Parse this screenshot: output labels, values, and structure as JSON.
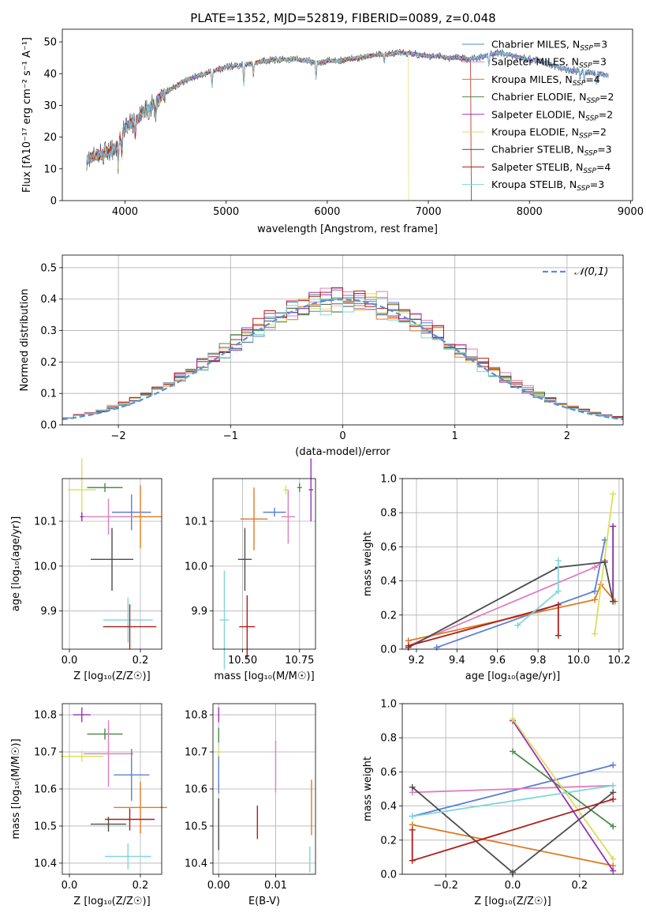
{
  "figure": {
    "title": "PLATE=1352, MJD=52819, FIBERID=0089, z=0.048"
  },
  "colors": {
    "Chabrier MILES": "#5b7fd6",
    "Salpeter MILES": "#e07dbf",
    "Kroupa MILES": "#e07a1f",
    "Chabrier ELODIE": "#4c8c4c",
    "Salpeter ELODIE": "#9b30b5",
    "Kroupa ELODIE": "#d8e05a",
    "Chabrier STELIB": "#4d4d4d",
    "Salpeter STELIB": "#b01c1c",
    "Kroupa STELIB": "#7fd6dc"
  },
  "chart_data": [
    {
      "type": "line",
      "title": "PLATE=1352, MJD=52819, FIBERID=0089, z=0.048",
      "xlabel": "wavelength [Angstrom, rest frame]",
      "ylabel": "Flux [fλ10⁻¹⁷ erg cm⁻² s⁻¹ A⁻¹]",
      "xlim": [
        3380,
        9020
      ],
      "ylim": [
        0,
        54
      ],
      "xticks": [
        "4000",
        "5000",
        "6000",
        "7000",
        "8000",
        "9000"
      ],
      "yticks": [
        "0",
        "10",
        "20",
        "30",
        "40",
        "50"
      ],
      "grid": false,
      "legend_placement": "top-right",
      "legend": [
        {
          "key": "Chabrier MILES",
          "label": "Chabrier MILES, N",
          "sub": "SSP",
          "suffix": "=3"
        },
        {
          "key": "Salpeter MILES",
          "label": "Salpeter MILES, N",
          "sub": "SSP",
          "suffix": "=3"
        },
        {
          "key": "Kroupa MILES",
          "label": "Kroupa MILES, N",
          "sub": "SSP",
          "suffix": "=4"
        },
        {
          "key": "Chabrier ELODIE",
          "label": "Chabrier ELODIE, N",
          "sub": "SSP",
          "suffix": "=2"
        },
        {
          "key": "Salpeter ELODIE",
          "label": "Salpeter ELODIE, N",
          "sub": "SSP",
          "suffix": "=2"
        },
        {
          "key": "Kroupa ELODIE",
          "label": "Kroupa ELODIE, N",
          "sub": "SSP",
          "suffix": "=2"
        },
        {
          "key": "Chabrier STELIB",
          "label": "Chabrier STELIB, N",
          "sub": "SSP",
          "suffix": "=3"
        },
        {
          "key": "Salpeter STELIB",
          "label": "Salpeter STELIB, N",
          "sub": "SSP",
          "suffix": "=4"
        },
        {
          "key": "Kroupa STELIB",
          "label": "Kroupa STELIB, N",
          "sub": "SSP",
          "suffix": "=3"
        }
      ],
      "continuum": {
        "x": [
          3620,
          3700,
          3800,
          3900,
          4000,
          4100,
          4200,
          4300,
          4400,
          4500,
          4600,
          4700,
          4800,
          4900,
          5000,
          5100,
          5200,
          5300,
          5400,
          5500,
          5600,
          5700,
          5800,
          5900,
          6000,
          6100,
          6200,
          6300,
          6400,
          6500,
          6600,
          6700,
          6800,
          6900,
          7000,
          7100,
          7200,
          7300,
          7400,
          7500,
          7600,
          7700,
          7800,
          7900,
          8000,
          8100,
          8200,
          8300,
          8400,
          8500,
          8600,
          8700,
          8800
        ],
        "y": [
          13,
          14,
          15,
          16,
          23,
          25,
          28,
          31,
          34,
          36,
          38,
          39,
          40,
          41,
          42,
          42.5,
          43,
          43.5,
          44,
          44.5,
          44.5,
          44.5,
          44,
          43.5,
          44,
          44,
          44.5,
          45,
          45.5,
          46,
          46,
          46.5,
          46.5,
          46,
          45.5,
          45.5,
          45,
          45,
          44.5,
          45,
          46,
          46.5,
          46,
          45,
          44.5,
          44,
          43,
          42,
          41,
          41,
          40.5,
          40,
          39
        ]
      },
      "dropouts": [
        {
          "series": "Kroupa ELODIE",
          "x_start": 6800
        },
        {
          "series": "Salpeter STELIB",
          "x_start": 7420
        },
        {
          "series": "Kroupa MILES",
          "x_start": 7420
        }
      ]
    },
    {
      "type": "histogram",
      "xlabel": "(data-model)/error",
      "ylabel": "Normed distribution",
      "xlim": [
        -2.5,
        2.5
      ],
      "ylim": [
        0,
        0.54
      ],
      "xticks": [
        "−2",
        "−1",
        "0",
        "1",
        "2"
      ],
      "yticks": [
        "0.0",
        "0.1",
        "0.2",
        "0.3",
        "0.4",
        "0.5"
      ],
      "grid": true,
      "bin_width": 0.1,
      "reference_curve": {
        "label": "𝒩(0,1)",
        "style": "dashed",
        "color": "#5b8fd6"
      },
      "legend_placement": "top-right",
      "series": [
        {
          "name": "Chabrier MILES",
          "amplitude": 1.0
        },
        {
          "name": "Salpeter MILES",
          "amplitude": 1.04
        },
        {
          "name": "Kroupa MILES",
          "amplitude": 0.98
        },
        {
          "name": "Chabrier ELODIE",
          "amplitude": 1.02
        },
        {
          "name": "Salpeter ELODIE",
          "amplitude": 1.0
        },
        {
          "name": "Kroupa ELODIE",
          "amplitude": 1.01
        },
        {
          "name": "Chabrier STELIB",
          "amplitude": 0.99
        },
        {
          "name": "Salpeter STELIB",
          "amplitude": 1.03
        },
        {
          "name": "Kroupa STELIB",
          "amplitude": 0.97
        }
      ]
    },
    {
      "type": "scatter",
      "xlabel": "Z [log₁₀(Z/Z☉)]",
      "ylabel": "age  [log₁₀(age/yr)]",
      "xlim": [
        -0.02,
        0.26
      ],
      "ylim": [
        9.815,
        10.195
      ],
      "xticks": [
        {
          "v": 0.0,
          "t": "0.0"
        },
        {
          "v": 0.2,
          "t": "0.2"
        }
      ],
      "yticks": [
        {
          "v": 9.9,
          "t": "9.9"
        },
        {
          "v": 10.0,
          "t": "10.0"
        },
        {
          "v": 10.1,
          "t": "10.1"
        }
      ],
      "grid": true,
      "points": [
        {
          "series": "Kroupa ELODIE",
          "x": 0.035,
          "y": 10.17,
          "xerr": 0.04,
          "yerr": 0.07
        },
        {
          "series": "Chabrier ELODIE",
          "x": 0.1,
          "y": 10.175,
          "xerr": 0.05,
          "yerr": 0.01
        },
        {
          "series": "Chabrier MILES",
          "x": 0.175,
          "y": 10.12,
          "xerr": 0.055,
          "yerr": 0.04
        },
        {
          "series": "Kroupa MILES",
          "x": 0.2,
          "y": 10.11,
          "xerr": 0.06,
          "yerr": 0.07
        },
        {
          "series": "Salpeter MILES",
          "x": 0.11,
          "y": 10.11,
          "xerr": 0.07,
          "yerr": 0.04
        },
        {
          "series": "Salpeter ELODIE",
          "x": 0.035,
          "y": 10.11,
          "xerr": 0.005,
          "yerr": 0.01
        },
        {
          "series": "Chabrier STELIB",
          "x": 0.12,
          "y": 10.015,
          "xerr": 0.06,
          "yerr": 0.07
        },
        {
          "series": "Kroupa STELIB",
          "x": 0.165,
          "y": 9.88,
          "xerr": 0.07,
          "yerr": 0.05
        },
        {
          "series": "Salpeter STELIB",
          "x": 0.17,
          "y": 9.865,
          "xerr": 0.075,
          "yerr": 0.05
        }
      ]
    },
    {
      "type": "scatter",
      "xlabel": "mass [log₁₀(M/M☉)]",
      "ylabel": "",
      "xlim": [
        10.37,
        10.82
      ],
      "ylim": [
        9.815,
        10.195
      ],
      "xticks": [
        {
          "v": 10.5,
          "t": "10.50"
        },
        {
          "v": 10.75,
          "t": "10.75"
        }
      ],
      "yticks": [
        {
          "v": 9.9,
          "t": "9.9"
        },
        {
          "v": 10.0,
          "t": "10.0"
        },
        {
          "v": 10.1,
          "t": "10.1"
        }
      ],
      "grid": true,
      "points": [
        {
          "series": "Kroupa ELODIE",
          "x": 10.69,
          "y": 10.17,
          "xerr": 0.01,
          "yerr": 0.01
        },
        {
          "series": "Chabrier ELODIE",
          "x": 10.75,
          "y": 10.175,
          "xerr": 0.01,
          "yerr": 0.01
        },
        {
          "series": "Salpeter ELODIE",
          "x": 10.8,
          "y": 10.17,
          "xerr": 0.01,
          "yerr": 0.07
        },
        {
          "series": "Chabrier MILES",
          "x": 10.64,
          "y": 10.12,
          "xerr": 0.05,
          "yerr": 0.01
        },
        {
          "series": "Kroupa MILES",
          "x": 10.55,
          "y": 10.105,
          "xerr": 0.06,
          "yerr": 0.07
        },
        {
          "series": "Salpeter MILES",
          "x": 10.7,
          "y": 10.11,
          "xerr": 0.03,
          "yerr": 0.06
        },
        {
          "series": "Chabrier STELIB",
          "x": 10.51,
          "y": 10.015,
          "xerr": 0.03,
          "yerr": 0.07
        },
        {
          "series": "Kroupa STELIB",
          "x": 10.42,
          "y": 9.88,
          "xerr": 0.02,
          "yerr": 0.11
        },
        {
          "series": "Salpeter STELIB",
          "x": 10.52,
          "y": 9.865,
          "xerr": 0.035,
          "yerr": 0.07
        }
      ]
    },
    {
      "type": "line",
      "xlabel": "age  [log₁₀(age/yr)]",
      "ylabel": "mass weight",
      "xlim": [
        9.13,
        10.22
      ],
      "ylim": [
        0,
        1.0
      ],
      "xticks": [
        {
          "v": 9.2,
          "t": "9.2"
        },
        {
          "v": 9.4,
          "t": "9.4"
        },
        {
          "v": 9.6,
          "t": "9.6"
        },
        {
          "v": 9.8,
          "t": "9.8"
        },
        {
          "v": 10.0,
          "t": "10.0"
        },
        {
          "v": 10.2,
          "t": "10.2"
        }
      ],
      "yticks": [
        {
          "v": 0.0,
          "t": "0.0"
        },
        {
          "v": 0.2,
          "t": "0.2"
        },
        {
          "v": 0.4,
          "t": "0.4"
        },
        {
          "v": 0.6,
          "t": "0.6"
        },
        {
          "v": 0.8,
          "t": "0.8"
        },
        {
          "v": 1.0,
          "t": "1.0"
        }
      ],
      "grid": true,
      "series": [
        {
          "name": "Chabrier MILES",
          "x": [
            9.3,
            10.08,
            10.13
          ],
          "y": [
            0.01,
            0.34,
            0.64
          ]
        },
        {
          "name": "Salpeter MILES",
          "x": [
            9.16,
            10.08,
            10.13
          ],
          "y": [
            0.02,
            0.48,
            0.52
          ]
        },
        {
          "name": "Kroupa MILES",
          "x": [
            9.16,
            10.08,
            10.11,
            10.18
          ],
          "y": [
            0.05,
            0.29,
            0.38,
            0.28
          ]
        },
        {
          "name": "Chabrier ELODIE",
          "x": [
            10.17,
            10.17
          ],
          "y": [
            0.28,
            0.72
          ]
        },
        {
          "name": "Salpeter ELODIE",
          "x": [
            10.17,
            10.17
          ],
          "y": [
            0.28,
            0.72
          ]
        },
        {
          "name": "Kroupa ELODIE",
          "x": [
            10.08,
            10.17
          ],
          "y": [
            0.09,
            0.91
          ]
        },
        {
          "name": "Chabrier STELIB",
          "x": [
            9.16,
            9.9,
            10.13,
            10.17
          ],
          "y": [
            0.01,
            0.48,
            0.51,
            0.28
          ]
        },
        {
          "name": "Salpeter STELIB",
          "x": [
            9.16,
            9.9,
            9.9
          ],
          "y": [
            0.02,
            0.26,
            0.08
          ]
        },
        {
          "name": "Kroupa STELIB",
          "x": [
            9.7,
            9.9,
            9.9
          ],
          "y": [
            0.14,
            0.34,
            0.52
          ]
        }
      ]
    },
    {
      "type": "scatter",
      "xlabel": "Z [log₁₀(Z/Z☉)]",
      "ylabel": "mass [log₁₀(M/M☉)]",
      "xlim": [
        -0.02,
        0.26
      ],
      "ylim": [
        10.37,
        10.83
      ],
      "xticks": [
        {
          "v": 0.0,
          "t": "0.0"
        },
        {
          "v": 0.2,
          "t": "0.2"
        }
      ],
      "yticks": [
        {
          "v": 10.4,
          "t": "10.4"
        },
        {
          "v": 10.5,
          "t": "10.5"
        },
        {
          "v": 10.6,
          "t": "10.6"
        },
        {
          "v": 10.7,
          "t": "10.7"
        },
        {
          "v": 10.8,
          "t": "10.8"
        }
      ],
      "grid": true,
      "points": [
        {
          "series": "Salpeter ELODIE",
          "x": 0.035,
          "y": 10.8,
          "xerr": 0.025,
          "yerr": 0.02
        },
        {
          "series": "Chabrier ELODIE",
          "x": 0.1,
          "y": 10.748,
          "xerr": 0.05,
          "yerr": 0.015
        },
        {
          "series": "Kroupa ELODIE",
          "x": 0.035,
          "y": 10.688,
          "xerr": 0.06,
          "yerr": 0.015
        },
        {
          "series": "Salpeter MILES",
          "x": 0.11,
          "y": 10.695,
          "xerr": 0.07,
          "yerr": 0.09
        },
        {
          "series": "Chabrier MILES",
          "x": 0.175,
          "y": 10.638,
          "xerr": 0.05,
          "yerr": 0.07
        },
        {
          "series": "Kroupa MILES",
          "x": 0.2,
          "y": 10.55,
          "xerr": 0.075,
          "yerr": 0.07
        },
        {
          "series": "Salpeter STELIB",
          "x": 0.17,
          "y": 10.518,
          "xerr": 0.07,
          "yerr": 0.03
        },
        {
          "series": "Chabrier STELIB",
          "x": 0.11,
          "y": 10.505,
          "xerr": 0.05,
          "yerr": 0.02
        },
        {
          "series": "Kroupa STELIB",
          "x": 0.165,
          "y": 10.418,
          "xerr": 0.065,
          "yerr": 0.035
        }
      ]
    },
    {
      "type": "scatter",
      "xlabel": "E(B-V)",
      "ylabel": "",
      "xlim": [
        -0.001,
        0.017
      ],
      "ylim": [
        10.37,
        10.83
      ],
      "xticks": [
        {
          "v": 0.0,
          "t": "0.00"
        },
        {
          "v": 0.01,
          "t": "0.01"
        }
      ],
      "yticks": [
        {
          "v": 10.4,
          "t": "10.4"
        },
        {
          "v": 10.5,
          "t": "10.5"
        },
        {
          "v": 10.6,
          "t": "10.6"
        },
        {
          "v": 10.7,
          "t": "10.7"
        },
        {
          "v": 10.8,
          "t": "10.8"
        }
      ],
      "grid": true,
      "points": [
        {
          "series": "Salpeter ELODIE",
          "x": 0.0,
          "y": 10.8,
          "xerr": 0.0,
          "yerr": 0.02
        },
        {
          "series": "Chabrier ELODIE",
          "x": 0.0,
          "y": 10.745,
          "xerr": 0.0,
          "yerr": 0.02
        },
        {
          "series": "Kroupa ELODIE",
          "x": 0.0,
          "y": 10.69,
          "xerr": 0.0,
          "yerr": 0.02
        },
        {
          "series": "Chabrier MILES",
          "x": 0.0,
          "y": 10.638,
          "xerr": 0.0,
          "yerr": 0.05
        },
        {
          "series": "Chabrier STELIB",
          "x": 0.0,
          "y": 10.505,
          "xerr": 0.0,
          "yerr": 0.07
        },
        {
          "series": "Salpeter MILES",
          "x": 0.01,
          "y": 10.66,
          "xerr": 0.0,
          "yerr": 0.07
        },
        {
          "series": "Salpeter STELIB",
          "x": 0.0068,
          "y": 10.51,
          "xerr": 0.0,
          "yerr": 0.045
        },
        {
          "series": "Kroupa MILES",
          "x": 0.0163,
          "y": 10.55,
          "xerr": 0.0,
          "yerr": 0.075
        },
        {
          "series": "Kroupa STELIB",
          "x": 0.016,
          "y": 10.41,
          "xerr": 0.0,
          "yerr": 0.035
        }
      ]
    },
    {
      "type": "line",
      "xlabel": "Z [log₁₀(Z/Z☉)]",
      "ylabel": "mass weight",
      "xlim": [
        -0.33,
        0.33
      ],
      "ylim": [
        0,
        1.0
      ],
      "xticks": [
        {
          "v": -0.2,
          "t": "−0.2"
        },
        {
          "v": 0.0,
          "t": "0.0"
        },
        {
          "v": 0.2,
          "t": "0.2"
        }
      ],
      "yticks": [
        {
          "v": 0.0,
          "t": "0.0"
        },
        {
          "v": 0.2,
          "t": "0.2"
        },
        {
          "v": 0.4,
          "t": "0.4"
        },
        {
          "v": 0.6,
          "t": "0.6"
        },
        {
          "v": 0.8,
          "t": "0.8"
        },
        {
          "v": 1.0,
          "t": "1.0"
        }
      ],
      "grid": true,
      "series": [
        {
          "name": "Chabrier MILES",
          "x": [
            -0.3,
            0.3
          ],
          "y": [
            0.34,
            0.64
          ]
        },
        {
          "name": "Salpeter MILES",
          "x": [
            -0.3,
            0.3
          ],
          "y": [
            0.48,
            0.52
          ]
        },
        {
          "name": "Kroupa MILES",
          "x": [
            -0.3,
            0.3
          ],
          "y": [
            0.29,
            0.05
          ]
        },
        {
          "name": "Chabrier ELODIE",
          "x": [
            0.0,
            0.3
          ],
          "y": [
            0.72,
            0.28
          ]
        },
        {
          "name": "Salpeter ELODIE",
          "x": [
            0.0,
            0.3
          ],
          "y": [
            0.9,
            0.02
          ]
        },
        {
          "name": "Kroupa ELODIE",
          "x": [
            0.0,
            0.3
          ],
          "y": [
            0.91,
            0.09
          ]
        },
        {
          "name": "Chabrier STELIB",
          "x": [
            -0.3,
            0.0,
            0.3
          ],
          "y": [
            0.51,
            0.01,
            0.48
          ]
        },
        {
          "name": "Salpeter STELIB",
          "x": [
            -0.3,
            -0.3,
            0.3
          ],
          "y": [
            0.26,
            0.08,
            0.44
          ]
        },
        {
          "name": "Kroupa STELIB",
          "x": [
            -0.3,
            0.3
          ],
          "y": [
            0.34,
            0.52
          ]
        }
      ]
    }
  ]
}
